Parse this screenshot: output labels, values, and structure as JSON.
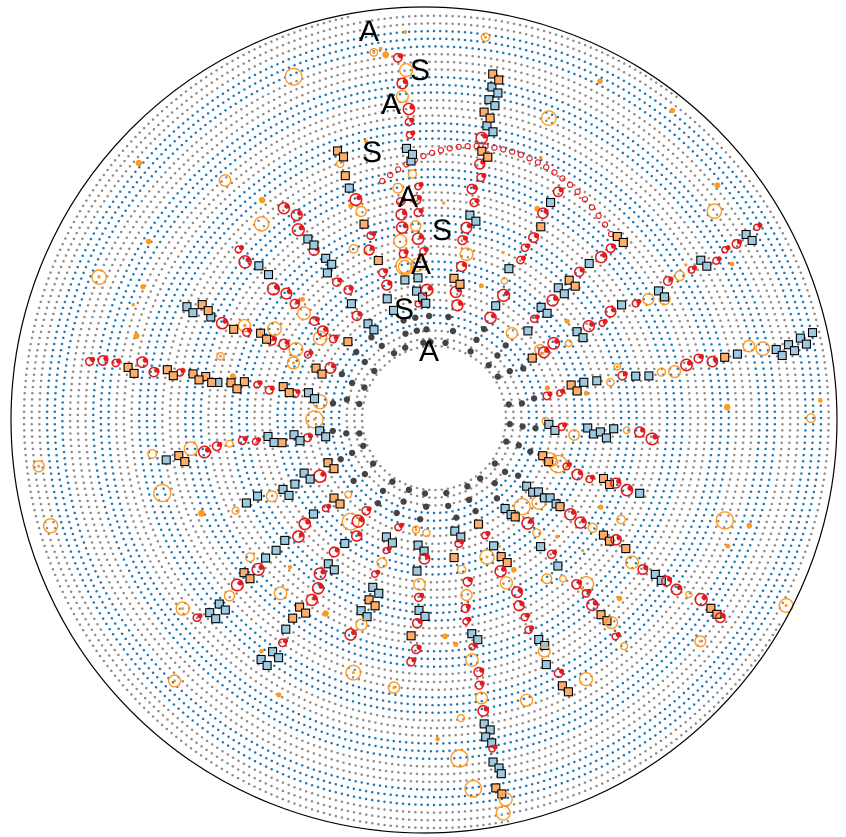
{
  "diagram": {
    "type": "circular-dot-plot",
    "annotations": [
      "A",
      "S",
      "A",
      "S",
      "A",
      "S",
      "A",
      "S",
      "A"
    ],
    "rings": {
      "count": 45,
      "pattern": "alternating bands of gray and blue dot rings",
      "band_colors": [
        "#8c8c8c",
        "#1f77b4"
      ]
    },
    "marker_colors": {
      "background_gray": "#8c8c8c",
      "background_blue": "#1f77b4",
      "highlight_red": "#e41a1c",
      "highlight_orange": "#ff9a1f",
      "box_outline": "#000000",
      "box_fill_blue": "#9ecae1",
      "box_fill_orange": "#fdae6b"
    },
    "marker_types": [
      "small dot",
      "hollow circle",
      "filled dot",
      "outlined square"
    ],
    "spokes": {
      "count": 24,
      "angles_deg": [
        -100,
        -80,
        -62,
        -45,
        -30,
        -12,
        5,
        20,
        35,
        50,
        65,
        80,
        95,
        110,
        125,
        140,
        155,
        172,
        190,
        205,
        220,
        235,
        250,
        265
      ]
    }
  }
}
